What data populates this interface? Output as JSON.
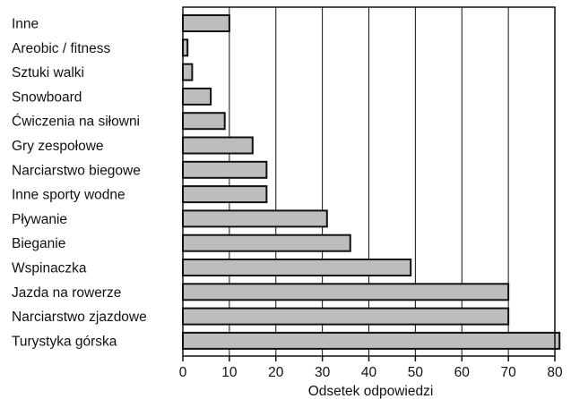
{
  "chart_data": {
    "type": "bar",
    "orientation": "horizontal",
    "categories": [
      "Inne",
      "Areobic / fitness",
      "Sztuki walki",
      "Snowboard",
      "Ćwiczenia na siłowni",
      "Gry zespołowe",
      "Narciarstwo biegowe",
      "Inne sporty wodne",
      "Pływanie",
      "Bieganie",
      "Wspinaczka",
      "Jazda na rowerze",
      "Narciarstwo zjazdowe",
      "Turystyka górska"
    ],
    "values": [
      10,
      1,
      2,
      6,
      9,
      15,
      18,
      18,
      31,
      36,
      49,
      70,
      70,
      81
    ],
    "xlabel": "Odsetek odpowiedzi",
    "ylabel": "",
    "title": "",
    "xlim": [
      0,
      80
    ],
    "xticks": [
      "0",
      "10",
      "20",
      "30",
      "40",
      "50",
      "60",
      "70",
      "80"
    ],
    "grid": "vertical",
    "colors": {
      "bar_fill": "#bdbdbd",
      "bar_stroke": "#111111",
      "grid": "#111111"
    }
  }
}
